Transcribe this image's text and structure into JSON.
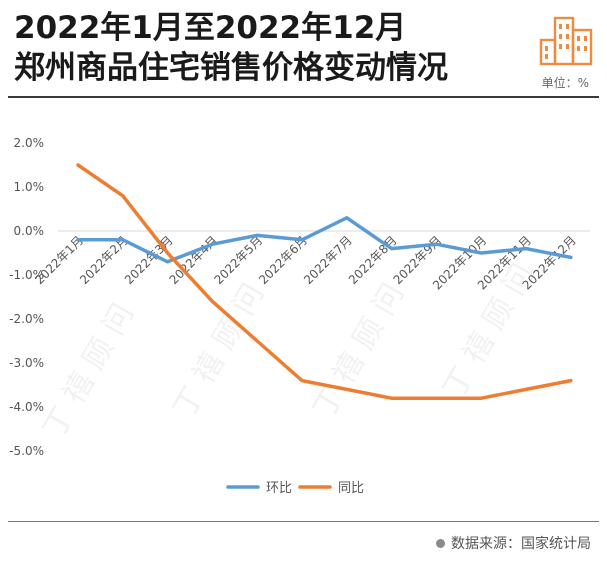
{
  "header": {
    "title_line1": "2022年1月至2022年12月",
    "title_line2": "郑州商品住宅销售价格变动情况",
    "unit": "单位：%",
    "logo_icon": "buildings-icon"
  },
  "footer": {
    "source": "数据来源：国家统计局"
  },
  "colors": {
    "series_mom": "#5b9bd5",
    "series_yoy": "#ed7d31",
    "logo": "#f08a3e"
  },
  "chart_data": {
    "type": "line",
    "title": "",
    "xlabel": "",
    "ylabel": "",
    "ylim": [
      -5.0,
      2.0
    ],
    "yticks": [
      "2.0%",
      "1.0%",
      "0.0%",
      "-1.0%",
      "-2.0%",
      "-3.0%",
      "-4.0%",
      "-5.0%"
    ],
    "ytick_values": [
      2.0,
      1.0,
      0.0,
      -1.0,
      -2.0,
      -3.0,
      -4.0,
      -5.0
    ],
    "categories": [
      "2022年1月",
      "2022年2月",
      "2022年3月",
      "2022年4月",
      "2022年5月",
      "2022年6月",
      "2022年7月",
      "2022年8月",
      "2022年9月",
      "2022年10月",
      "2022年11月",
      "2022年12月"
    ],
    "grid": false,
    "legend_position": "bottom",
    "series": [
      {
        "name": "环比",
        "values": [
          -0.2,
          -0.2,
          -0.7,
          -0.3,
          -0.1,
          -0.2,
          0.3,
          -0.4,
          -0.3,
          -0.5,
          -0.4,
          -0.6
        ]
      },
      {
        "name": "同比",
        "values": [
          1.5,
          0.8,
          -0.5,
          -1.6,
          -2.5,
          -3.4,
          -3.6,
          -3.8,
          -3.8,
          -3.8,
          -3.6,
          -3.4
        ]
      }
    ]
  }
}
